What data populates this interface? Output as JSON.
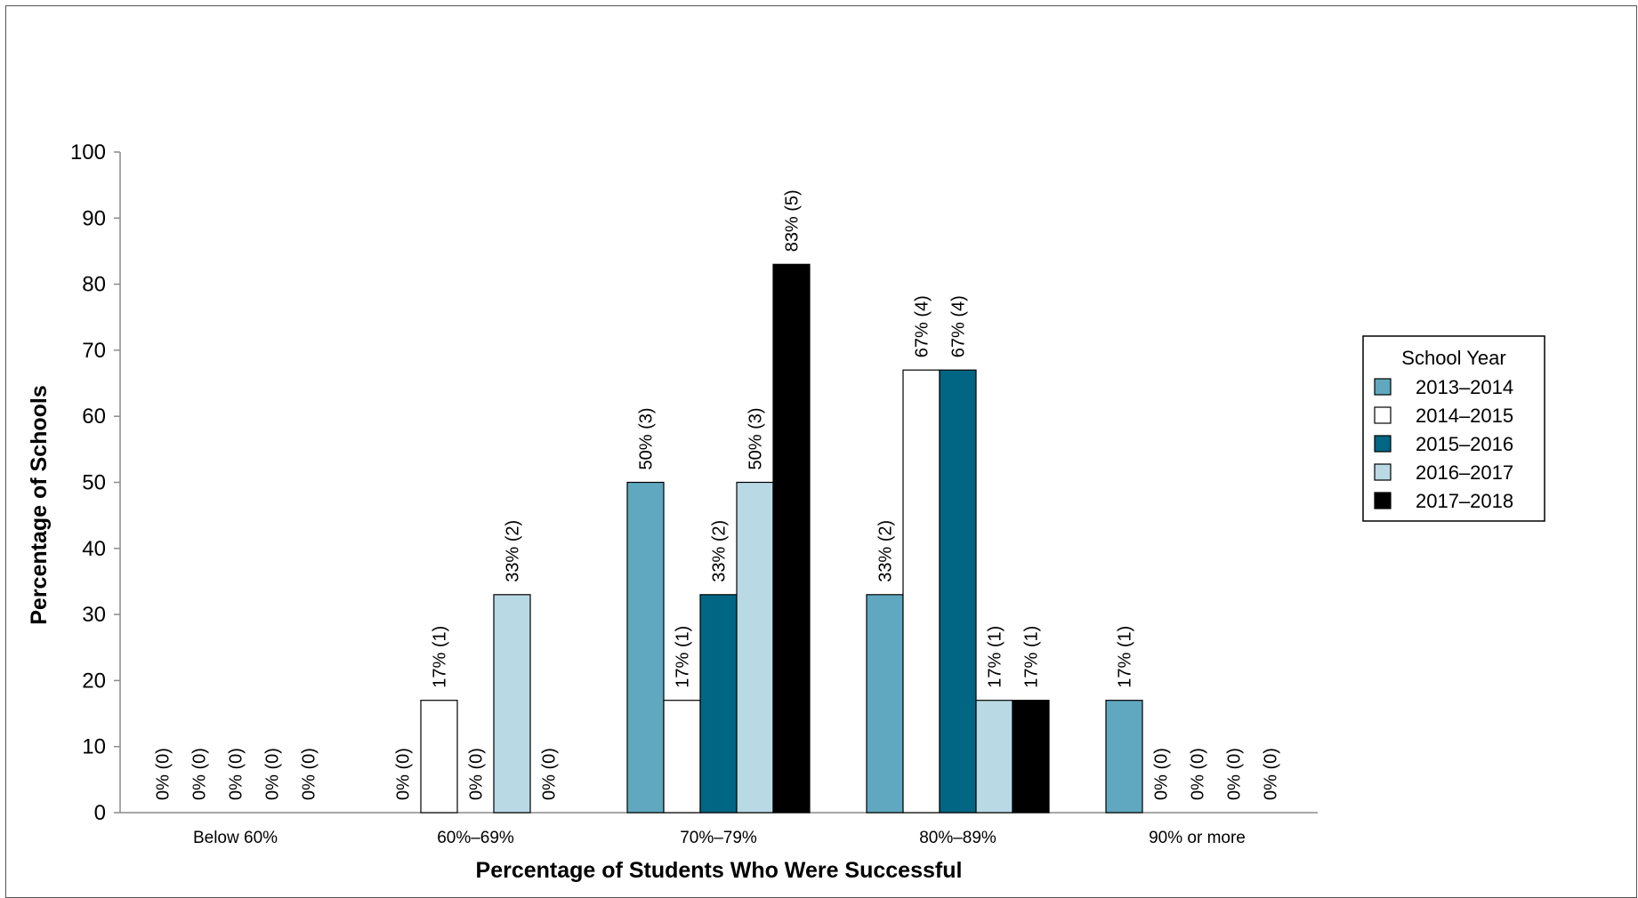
{
  "chart_data": {
    "type": "bar",
    "title": "",
    "xlabel": "Percentage of Students Who Were Successful",
    "ylabel": "Percentage of Schools",
    "ylim": [
      0,
      100
    ],
    "yticks": [
      0,
      10,
      20,
      30,
      40,
      50,
      60,
      70,
      80,
      90,
      100
    ],
    "grid": false,
    "legend_title": "School Year",
    "legend_position": "right",
    "categories": [
      "Below 60%",
      "60%–69%",
      "70%–79%",
      "80%–89%",
      "90% or more"
    ],
    "series": [
      {
        "name": "2013–2014",
        "color": "#5fa8c0",
        "values": [
          0,
          0,
          50,
          33,
          17
        ],
        "labels": [
          "0% (0)",
          "0% (0)",
          "50% (3)",
          "33% (2)",
          "17% (1)"
        ]
      },
      {
        "name": "2014–2015",
        "color": "#ffffff",
        "values": [
          0,
          17,
          17,
          67,
          0
        ],
        "labels": [
          "0% (0)",
          "17% (1)",
          "17% (1)",
          "67% (4)",
          "0% (0)"
        ]
      },
      {
        "name": "2015–2016",
        "color": "#006683",
        "values": [
          0,
          0,
          33,
          67,
          0
        ],
        "labels": [
          "0% (0)",
          "0% (0)",
          "33% (2)",
          "67% (4)",
          "0% (0)"
        ]
      },
      {
        "name": "2016–2017",
        "color": "#b9d9e4",
        "values": [
          0,
          33,
          50,
          17,
          0
        ],
        "labels": [
          "0% (0)",
          "33% (2)",
          "50% (3)",
          "17% (1)",
          "0% (0)"
        ]
      },
      {
        "name": "2017–2018",
        "color": "#000000",
        "values": [
          0,
          0,
          83,
          17,
          0
        ],
        "labels": [
          "0% (0)",
          "0% (0)",
          "83% (5)",
          "17% (1)",
          "0% (0)"
        ]
      }
    ]
  }
}
